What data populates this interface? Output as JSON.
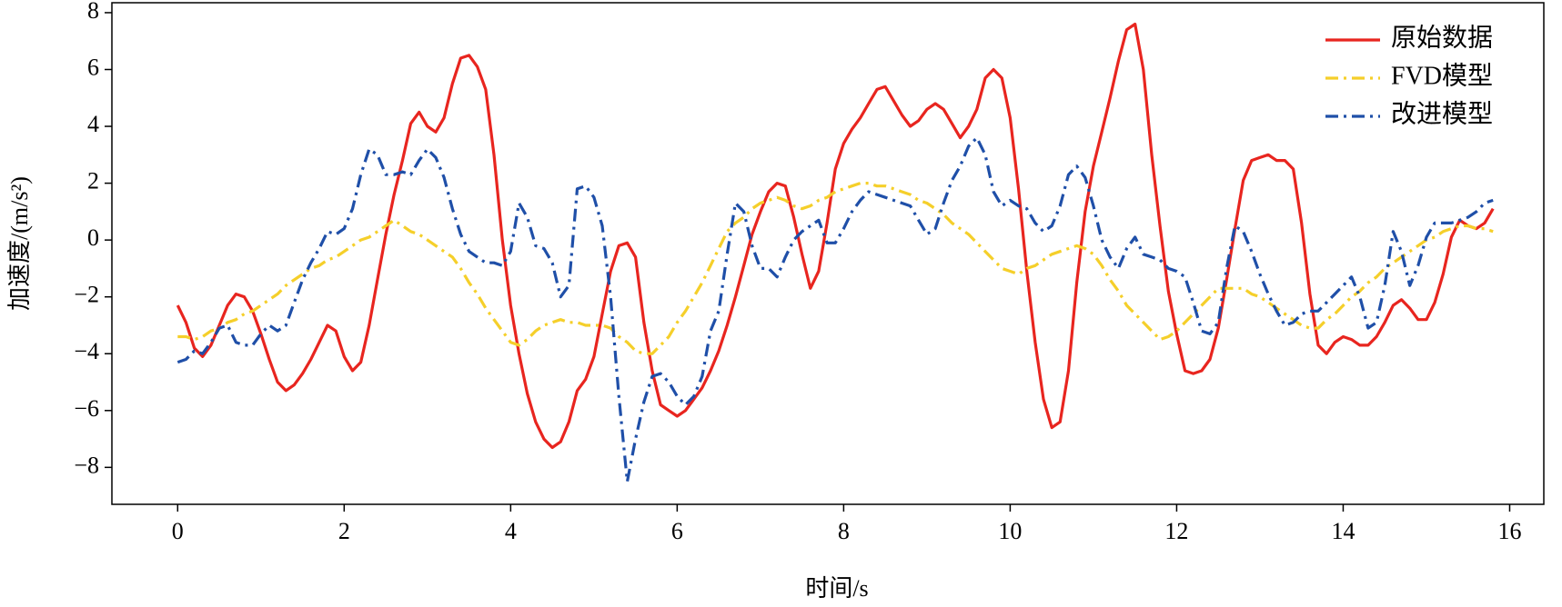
{
  "chart_data": {
    "type": "line",
    "x_label": "时间/s",
    "y_label": "加速度/(m/s²)",
    "xlim": [
      -0.79,
      16.41
    ],
    "ylim": [
      -9.3,
      8.35
    ],
    "xticks": [
      0,
      2,
      4,
      6,
      8,
      10,
      12,
      14,
      16
    ],
    "yticks": [
      {
        "value": -8,
        "label": "−8"
      },
      {
        "value": -6,
        "label": "−6"
      },
      {
        "value": -4,
        "label": "−4"
      },
      {
        "value": -2,
        "label": "−2"
      },
      0,
      2,
      4,
      6,
      8
    ],
    "legend": "upper right",
    "x": [
      0,
      0.1,
      0.2,
      0.3,
      0.4,
      0.5,
      0.6,
      0.7,
      0.8,
      0.9,
      1,
      1.1,
      1.2,
      1.3,
      1.4,
      1.5,
      1.6,
      1.7,
      1.8,
      1.9,
      2,
      2.1,
      2.2,
      2.3,
      2.4,
      2.5,
      2.6,
      2.7,
      2.8,
      2.9,
      3,
      3.1,
      3.2,
      3.3,
      3.4,
      3.5,
      3.6,
      3.7,
      3.8,
      3.9,
      4,
      4.1,
      4.2,
      4.3,
      4.4,
      4.5,
      4.6,
      4.7,
      4.8,
      4.9,
      5,
      5.1,
      5.2,
      5.3,
      5.4,
      5.5,
      5.6,
      5.7,
      5.8,
      5.9,
      6,
      6.1,
      6.2,
      6.3,
      6.4,
      6.5,
      6.6,
      6.7,
      6.8,
      6.9,
      7,
      7.1,
      7.2,
      7.3,
      7.4,
      7.5,
      7.6,
      7.7,
      7.8,
      7.9,
      8,
      8.1,
      8.2,
      8.3,
      8.4,
      8.5,
      8.6,
      8.7,
      8.8,
      8.9,
      9,
      9.1,
      9.2,
      9.3,
      9.4,
      9.5,
      9.6,
      9.7,
      9.8,
      9.9,
      10,
      10.1,
      10.2,
      10.3,
      10.4,
      10.5,
      10.6,
      10.7,
      10.8,
      10.9,
      11,
      11.1,
      11.2,
      11.3,
      11.4,
      11.5,
      11.6,
      11.7,
      11.8,
      11.9,
      12,
      12.1,
      12.2,
      12.3,
      12.4,
      12.5,
      12.6,
      12.7,
      12.8,
      12.9,
      13,
      13.1,
      13.2,
      13.3,
      13.4,
      13.5,
      13.6,
      13.7,
      13.8,
      13.9,
      14,
      14.1,
      14.2,
      14.3,
      14.4,
      14.5,
      14.6,
      14.7,
      14.8,
      14.9,
      15,
      15.1,
      15.2,
      15.3,
      15.4,
      15.5,
      15.6,
      15.7,
      15.8
    ],
    "series": [
      {
        "name": "原始数据",
        "color": "#e8251f",
        "linestyle": "solid",
        "values": [
          -2.3,
          -2.9,
          -3.8,
          -4.1,
          -3.7,
          -3.0,
          -2.3,
          -1.9,
          -2.0,
          -2.5,
          -3.3,
          -4.2,
          -5.0,
          -5.3,
          -5.1,
          -4.7,
          -4.2,
          -3.6,
          -3.0,
          -3.2,
          -4.1,
          -4.6,
          -4.3,
          -3.0,
          -1.4,
          0.2,
          1.6,
          2.8,
          4.1,
          4.5,
          4.0,
          3.8,
          4.3,
          5.5,
          6.4,
          6.5,
          6.1,
          5.3,
          3.0,
          0.0,
          -2.3,
          -4.0,
          -5.4,
          -6.4,
          -7.0,
          -7.3,
          -7.1,
          -6.4,
          -5.3,
          -4.9,
          -4.1,
          -2.6,
          -1.1,
          -0.2,
          -0.1,
          -0.6,
          -2.9,
          -4.6,
          -5.8,
          -6.0,
          -6.2,
          -6.0,
          -5.6,
          -5.2,
          -4.6,
          -3.9,
          -3.0,
          -2.0,
          -0.9,
          0.2,
          1.0,
          1.7,
          2.0,
          1.9,
          0.8,
          -0.5,
          -1.7,
          -1.1,
          0.6,
          2.5,
          3.4,
          3.9,
          4.3,
          4.8,
          5.3,
          5.4,
          4.9,
          4.4,
          4.0,
          4.2,
          4.6,
          4.8,
          4.6,
          4.1,
          3.6,
          4.0,
          4.6,
          5.7,
          6.0,
          5.7,
          4.3,
          1.8,
          -1.1,
          -3.6,
          -5.6,
          -6.6,
          -6.4,
          -4.6,
          -1.5,
          1.0,
          2.6,
          3.8,
          5.0,
          6.3,
          7.4,
          7.6,
          6.0,
          3.0,
          0.5,
          -1.8,
          -3.3,
          -4.6,
          -4.7,
          -4.6,
          -4.2,
          -3.1,
          -1.4,
          0.4,
          2.1,
          2.8,
          2.9,
          3.0,
          2.8,
          2.8,
          2.5,
          0.6,
          -1.9,
          -3.7,
          -4.0,
          -3.6,
          -3.4,
          -3.5,
          -3.7,
          -3.7,
          -3.4,
          -2.9,
          -2.3,
          -2.1,
          -2.4,
          -2.8,
          -2.8,
          -2.2,
          -1.2,
          0.1,
          0.7,
          0.5,
          0.4,
          0.6,
          1.1
        ]
      },
      {
        "name": "FVD模型",
        "color": "#f5cf2a",
        "linestyle": "dashdot",
        "values": [
          -3.4,
          -3.4,
          -3.5,
          -3.4,
          -3.2,
          -3.1,
          -2.9,
          -2.8,
          -2.6,
          -2.5,
          -2.3,
          -2.1,
          -1.9,
          -1.6,
          -1.4,
          -1.2,
          -1.0,
          -0.9,
          -0.7,
          -0.6,
          -0.4,
          -0.2,
          0.0,
          0.1,
          0.3,
          0.5,
          0.7,
          0.5,
          0.3,
          0.2,
          0.0,
          -0.2,
          -0.4,
          -0.6,
          -1.0,
          -1.5,
          -1.9,
          -2.4,
          -2.8,
          -3.2,
          -3.6,
          -3.7,
          -3.5,
          -3.2,
          -3.0,
          -2.9,
          -2.8,
          -2.9,
          -2.9,
          -3.0,
          -3.0,
          -3.0,
          -3.1,
          -3.4,
          -3.6,
          -3.9,
          -4.0,
          -4.0,
          -3.7,
          -3.4,
          -2.9,
          -2.5,
          -2.0,
          -1.5,
          -0.9,
          -0.3,
          0.3,
          0.6,
          0.8,
          1.1,
          1.3,
          1.4,
          1.5,
          1.4,
          1.2,
          1.1,
          1.2,
          1.4,
          1.5,
          1.7,
          1.8,
          1.9,
          2.0,
          2.0,
          1.9,
          1.9,
          1.8,
          1.7,
          1.6,
          1.4,
          1.3,
          1.1,
          0.9,
          0.6,
          0.4,
          0.2,
          -0.1,
          -0.4,
          -0.7,
          -1.0,
          -1.1,
          -1.2,
          -1.0,
          -0.9,
          -0.7,
          -0.5,
          -0.4,
          -0.3,
          -0.2,
          -0.3,
          -0.5,
          -0.9,
          -1.4,
          -1.8,
          -2.3,
          -2.6,
          -2.9,
          -3.2,
          -3.5,
          -3.4,
          -3.2,
          -2.9,
          -2.6,
          -2.3,
          -2.0,
          -1.7,
          -1.7,
          -1.7,
          -1.7,
          -1.9,
          -2.0,
          -2.2,
          -2.4,
          -2.6,
          -2.8,
          -3.0,
          -3.1,
          -3.1,
          -2.8,
          -2.6,
          -2.3,
          -2.0,
          -1.8,
          -1.5,
          -1.3,
          -1.0,
          -0.8,
          -0.6,
          -0.4,
          -0.2,
          0.0,
          0.1,
          0.3,
          0.4,
          0.5,
          0.5,
          0.4,
          0.4,
          0.3
        ]
      },
      {
        "name": "改进模型",
        "color": "#1f4fa8",
        "linestyle": "dashdot",
        "values": [
          -4.3,
          -4.2,
          -3.9,
          -4.0,
          -3.6,
          -3.1,
          -3.0,
          -3.6,
          -3.7,
          -3.7,
          -3.3,
          -3.0,
          -3.2,
          -3.0,
          -2.2,
          -1.4,
          -0.8,
          -0.3,
          0.3,
          0.2,
          0.4,
          1.1,
          2.3,
          3.2,
          3.0,
          2.3,
          2.3,
          2.4,
          2.3,
          2.8,
          3.2,
          2.9,
          2.2,
          1.1,
          0.2,
          -0.4,
          -0.6,
          -0.8,
          -0.8,
          -0.9,
          -0.4,
          1.3,
          0.8,
          -0.2,
          -0.3,
          -0.8,
          -2.0,
          -1.6,
          1.8,
          1.9,
          1.5,
          0.5,
          -2.0,
          -5.5,
          -8.5,
          -7.0,
          -5.7,
          -4.8,
          -4.7,
          -5.0,
          -5.5,
          -5.8,
          -5.5,
          -4.8,
          -3.2,
          -2.5,
          -0.5,
          1.3,
          1.0,
          -0.2,
          -1.0,
          -1.0,
          -1.3,
          -0.6,
          0.0,
          0.3,
          0.5,
          0.7,
          -0.1,
          -0.1,
          0.4,
          1.0,
          1.4,
          1.7,
          1.6,
          1.5,
          1.4,
          1.3,
          1.2,
          0.7,
          0.2,
          0.4,
          1.3,
          2.1,
          2.6,
          3.3,
          3.6,
          3.0,
          1.7,
          1.2,
          1.4,
          1.2,
          1.1,
          0.6,
          0.3,
          0.5,
          1.2,
          2.3,
          2.6,
          2.2,
          1.2,
          0.0,
          -0.6,
          -1.0,
          -0.3,
          0.1,
          -0.5,
          -0.6,
          -0.7,
          -1.0,
          -1.1,
          -1.3,
          -2.2,
          -3.2,
          -3.3,
          -2.9,
          -1.0,
          0.5,
          0.3,
          -0.4,
          -1.2,
          -1.9,
          -2.5,
          -3.0,
          -2.9,
          -2.6,
          -2.5,
          -2.5,
          -2.2,
          -1.9,
          -1.6,
          -1.3,
          -2.0,
          -3.1,
          -2.9,
          -1.6,
          0.3,
          -0.4,
          -1.6,
          -0.9,
          0.1,
          0.6,
          0.6,
          0.6,
          0.7,
          0.8,
          1.0,
          1.3,
          1.4
        ]
      }
    ]
  }
}
